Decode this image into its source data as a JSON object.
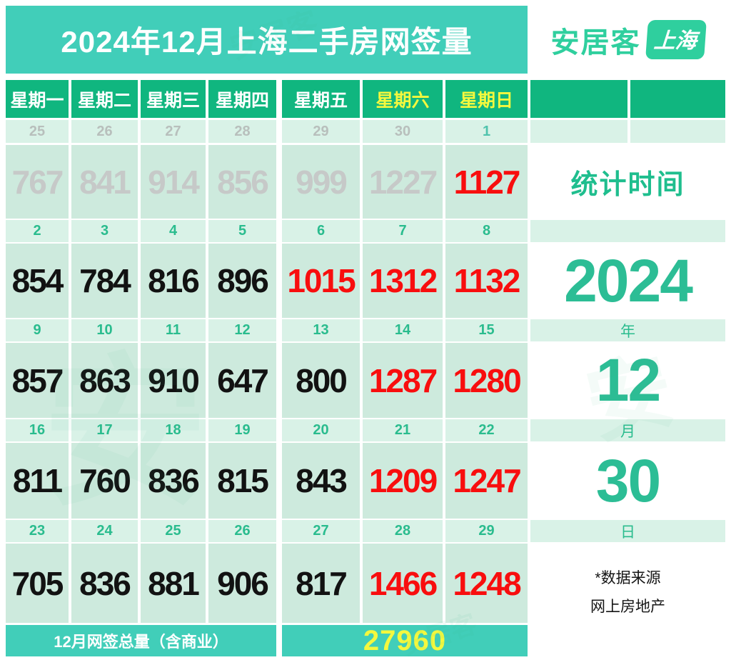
{
  "header": {
    "title": "2024年12月上海二手房网签量",
    "brand": "安居客",
    "brand_badge": "上海"
  },
  "weekdays": [
    {
      "label": "星期一",
      "tone": "weekday"
    },
    {
      "label": "星期二",
      "tone": "weekday"
    },
    {
      "label": "星期三",
      "tone": "weekday"
    },
    {
      "label": "星期四",
      "tone": "weekday"
    },
    {
      "label": "星期五",
      "tone": "weekday"
    },
    {
      "label": "星期六",
      "tone": "weekend"
    },
    {
      "label": "星期日",
      "tone": "weekend"
    }
  ],
  "weeks": [
    {
      "dates": [
        {
          "t": "25",
          "tone": "muted"
        },
        {
          "t": "26",
          "tone": "muted"
        },
        {
          "t": "27",
          "tone": "muted"
        },
        {
          "t": "28",
          "tone": "muted"
        },
        {
          "t": "29",
          "tone": "muted"
        },
        {
          "t": "30",
          "tone": "muted"
        },
        {
          "t": "1",
          "tone": "teal"
        }
      ],
      "values": [
        {
          "t": "767",
          "tone": "muted"
        },
        {
          "t": "841",
          "tone": "muted"
        },
        {
          "t": "914",
          "tone": "muted"
        },
        {
          "t": "856",
          "tone": "muted"
        },
        {
          "t": "999",
          "tone": "muted"
        },
        {
          "t": "1227",
          "tone": "muted"
        },
        {
          "t": "1127",
          "tone": "red"
        }
      ]
    },
    {
      "dates": [
        {
          "t": "2",
          "tone": "green"
        },
        {
          "t": "3",
          "tone": "green"
        },
        {
          "t": "4",
          "tone": "green"
        },
        {
          "t": "5",
          "tone": "green"
        },
        {
          "t": "6",
          "tone": "green"
        },
        {
          "t": "7",
          "tone": "green"
        },
        {
          "t": "8",
          "tone": "green"
        }
      ],
      "values": [
        {
          "t": "854",
          "tone": "dark"
        },
        {
          "t": "784",
          "tone": "dark"
        },
        {
          "t": "816",
          "tone": "dark"
        },
        {
          "t": "896",
          "tone": "dark"
        },
        {
          "t": "1015",
          "tone": "red"
        },
        {
          "t": "1312",
          "tone": "red"
        },
        {
          "t": "1132",
          "tone": "red"
        }
      ]
    },
    {
      "dates": [
        {
          "t": "9",
          "tone": "green"
        },
        {
          "t": "10",
          "tone": "green"
        },
        {
          "t": "11",
          "tone": "green"
        },
        {
          "t": "12",
          "tone": "green"
        },
        {
          "t": "13",
          "tone": "green"
        },
        {
          "t": "14",
          "tone": "green"
        },
        {
          "t": "15",
          "tone": "green"
        }
      ],
      "values": [
        {
          "t": "857",
          "tone": "dark"
        },
        {
          "t": "863",
          "tone": "dark"
        },
        {
          "t": "910",
          "tone": "dark"
        },
        {
          "t": "647",
          "tone": "dark"
        },
        {
          "t": "800",
          "tone": "dark"
        },
        {
          "t": "1287",
          "tone": "red"
        },
        {
          "t": "1280",
          "tone": "red"
        }
      ]
    },
    {
      "dates": [
        {
          "t": "16",
          "tone": "green"
        },
        {
          "t": "17",
          "tone": "green"
        },
        {
          "t": "18",
          "tone": "green"
        },
        {
          "t": "19",
          "tone": "green"
        },
        {
          "t": "20",
          "tone": "green"
        },
        {
          "t": "21",
          "tone": "green"
        },
        {
          "t": "22",
          "tone": "green"
        }
      ],
      "values": [
        {
          "t": "811",
          "tone": "dark"
        },
        {
          "t": "760",
          "tone": "dark"
        },
        {
          "t": "836",
          "tone": "dark"
        },
        {
          "t": "815",
          "tone": "dark"
        },
        {
          "t": "843",
          "tone": "dark"
        },
        {
          "t": "1209",
          "tone": "red"
        },
        {
          "t": "1247",
          "tone": "red"
        }
      ]
    },
    {
      "dates": [
        {
          "t": "23",
          "tone": "green"
        },
        {
          "t": "24",
          "tone": "green"
        },
        {
          "t": "25",
          "tone": "green"
        },
        {
          "t": "26",
          "tone": "green"
        },
        {
          "t": "27",
          "tone": "green"
        },
        {
          "t": "28",
          "tone": "green"
        },
        {
          "t": "29",
          "tone": "green"
        }
      ],
      "values": [
        {
          "t": "705",
          "tone": "dark"
        },
        {
          "t": "836",
          "tone": "dark"
        },
        {
          "t": "881",
          "tone": "dark"
        },
        {
          "t": "906",
          "tone": "dark"
        },
        {
          "t": "817",
          "tone": "dark"
        },
        {
          "t": "1466",
          "tone": "red"
        },
        {
          "t": "1248",
          "tone": "red"
        }
      ]
    }
  ],
  "sidebar": {
    "stat_label": "统计时间",
    "week1_unit": "",
    "year": "2024",
    "year_unit": "年",
    "month": "12",
    "month_unit": "月",
    "day": "30",
    "day_unit": "日",
    "source_line1": "*数据来源",
    "source_line2": "网上房地产"
  },
  "footer": {
    "label": "12月网签总量（含商业）",
    "total": "27960"
  },
  "watermark": {
    "text": "安居客",
    "ghost": "安"
  },
  "colors": {
    "banner_teal": "#41ceb9",
    "weekday_green": "#10b67f",
    "date_bg": "#d9f2e7",
    "value_bg": "#cdeadd",
    "green_text": "#2abc8e",
    "red_text": "#f80e0e",
    "muted_text": "#c6c9c8",
    "yellow_text": "#f4f83e"
  },
  "chart_data": {
    "type": "table",
    "title": "2024年12月上海二手房网签量",
    "columns": [
      "星期一",
      "星期二",
      "星期三",
      "星期四",
      "星期五",
      "星期六",
      "星期日"
    ],
    "rows": [
      {
        "dates": [
          25,
          26,
          27,
          28,
          29,
          30,
          1
        ],
        "values": [
          767,
          841,
          914,
          856,
          999,
          1227,
          1127
        ]
      },
      {
        "dates": [
          2,
          3,
          4,
          5,
          6,
          7,
          8
        ],
        "values": [
          854,
          784,
          816,
          896,
          1015,
          1312,
          1132
        ]
      },
      {
        "dates": [
          9,
          10,
          11,
          12,
          13,
          14,
          15
        ],
        "values": [
          857,
          863,
          910,
          647,
          800,
          1287,
          1280
        ]
      },
      {
        "dates": [
          16,
          17,
          18,
          19,
          20,
          21,
          22
        ],
        "values": [
          811,
          760,
          836,
          815,
          843,
          1209,
          1247
        ]
      },
      {
        "dates": [
          23,
          24,
          25,
          26,
          27,
          28,
          29
        ],
        "values": [
          705,
          836,
          881,
          906,
          817,
          1466,
          1248
        ]
      }
    ],
    "stat_date": {
      "year": 2024,
      "month": 12,
      "day": 30
    },
    "total_label": "12月网签总量（含商业）",
    "total": 27960,
    "source": "*数据来源 网上房地产"
  }
}
